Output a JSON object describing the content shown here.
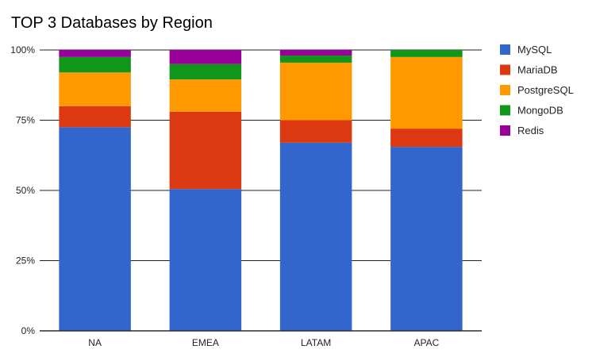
{
  "chart_data": {
    "type": "bar",
    "stacked": true,
    "percent_stacked": true,
    "title": "TOP 3 Databases by Region",
    "xlabel": "",
    "ylabel": "",
    "categories": [
      "NA",
      "EMEA",
      "LATAM",
      "APAC"
    ],
    "series": [
      {
        "name": "MySQL",
        "color": "#3366cc",
        "values": [
          72.5,
          50.5,
          67.0,
          65.5
        ]
      },
      {
        "name": "MariaDB",
        "color": "#dc3912",
        "values": [
          7.5,
          27.5,
          8.0,
          6.5
        ]
      },
      {
        "name": "PostgreSQL",
        "color": "#ff9900",
        "values": [
          12.0,
          11.5,
          20.5,
          25.5
        ]
      },
      {
        "name": "MongoDB",
        "color": "#109618",
        "values": [
          5.5,
          5.5,
          2.5,
          2.5
        ]
      },
      {
        "name": "Redis",
        "color": "#990099",
        "values": [
          2.5,
          5.0,
          2.0,
          0.0
        ]
      }
    ],
    "yticks": [
      "0%",
      "25%",
      "50%",
      "75%",
      "100%"
    ],
    "ylim": [
      0,
      100
    ],
    "grid": true,
    "legend": "right"
  }
}
